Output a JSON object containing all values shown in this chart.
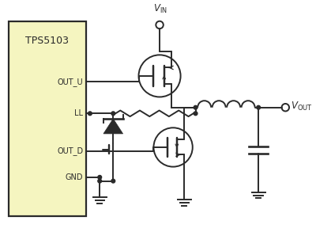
{
  "ic_fill": "#f5f5c0",
  "line_color": "#2a2a2a",
  "ic_label": "TPS5103",
  "pin_labels": [
    "OUT_U",
    "LL",
    "OUT_D",
    "GND"
  ],
  "vin_label": "V_IN",
  "vout_label": "V_OUT"
}
